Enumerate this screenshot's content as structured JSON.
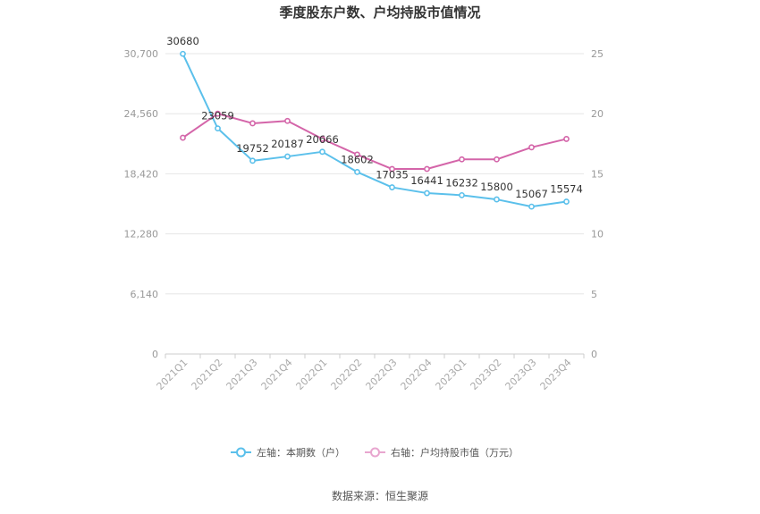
{
  "chart_data": {
    "type": "line",
    "title": "季度股东户数、户均持股市值情况",
    "categories": [
      "2021Q1",
      "2021Q2",
      "2021Q3",
      "2021Q4",
      "2022Q1",
      "2022Q2",
      "2022Q3",
      "2022Q4",
      "2023Q1",
      "2023Q2",
      "2023Q3",
      "2023Q4"
    ],
    "left_axis": {
      "ticks": [
        "0",
        "6,140",
        "12,280",
        "18,420",
        "24,560",
        "30,700"
      ],
      "ylim": [
        0,
        30700
      ]
    },
    "right_axis": {
      "ticks": [
        "0",
        "5",
        "10",
        "15",
        "20",
        "25"
      ],
      "ylim": [
        0,
        25
      ]
    },
    "series": [
      {
        "name": "左轴：本期数（户）",
        "axis": "left",
        "color": "#5bc0eb",
        "values": [
          30680,
          23059,
          19752,
          20187,
          20666,
          18602,
          17035,
          16441,
          16232,
          15800,
          15067,
          15574
        ],
        "labels": [
          "30680",
          "23059",
          "19752",
          "20187",
          "20666",
          "18602",
          "17035",
          "16441",
          "16232",
          "15800",
          "15067",
          "15574"
        ]
      },
      {
        "name": "右轴：户均持股市值（万元）",
        "axis": "right",
        "color": "#d465a9",
        "values": [
          18.0,
          20.0,
          19.2,
          19.4,
          17.9,
          16.6,
          15.4,
          15.4,
          16.2,
          16.2,
          17.2,
          17.9
        ]
      }
    ],
    "grid": true,
    "legend_position": "bottom"
  },
  "source": "数据来源：恒生聚源"
}
